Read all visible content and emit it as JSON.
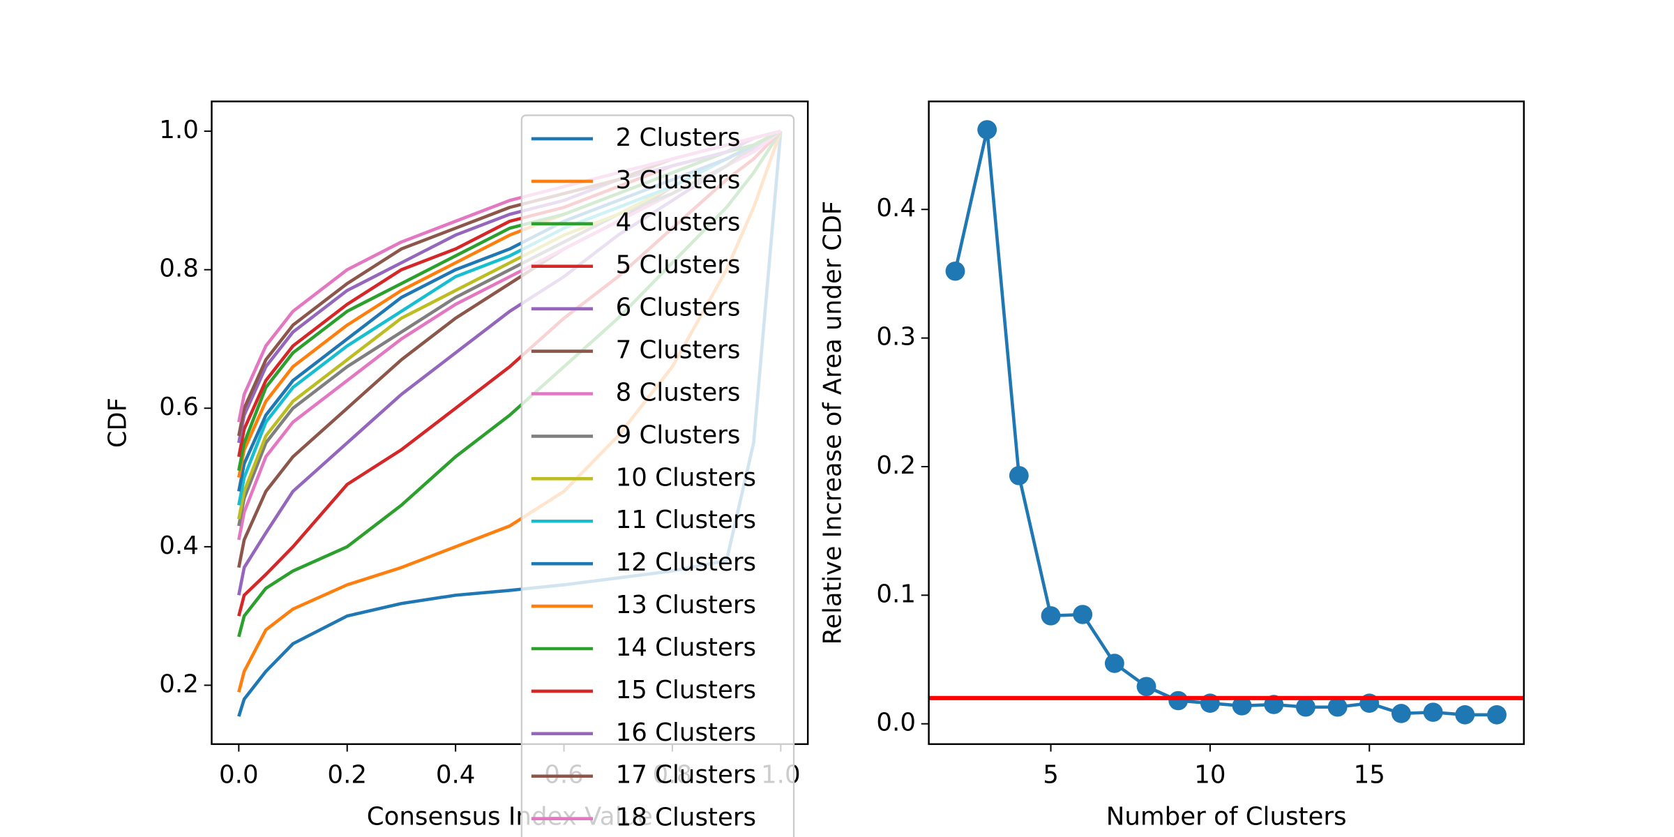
{
  "chart_data": [
    {
      "type": "line",
      "xlabel": "Consensus Index Value",
      "ylabel": "CDF",
      "x": [
        0,
        0.01,
        0.05,
        0.1,
        0.2,
        0.3,
        0.4,
        0.5,
        0.6,
        0.7,
        0.8,
        0.9,
        0.95,
        1.0
      ],
      "xlim": [
        -0.05,
        1.05
      ],
      "ylim": [
        0.115,
        1.043
      ],
      "xticks": [
        {
          "value": 0,
          "label": "0.0"
        },
        0.2,
        0.4,
        0.6,
        0.8,
        {
          "value": 1,
          "label": "1.0"
        }
      ],
      "yticks": [
        0.2,
        0.4,
        0.6,
        0.8,
        {
          "value": 1,
          "label": "1.0"
        }
      ],
      "legend": "upper right",
      "series": [
        {
          "name": "2 Clusters",
          "color": "#1f77b4",
          "values": [
            0.155,
            0.18,
            0.22,
            0.26,
            0.3,
            0.318,
            0.33,
            0.337,
            0.345,
            0.355,
            0.365,
            0.38,
            0.55,
            1.0
          ]
        },
        {
          "name": "3 Clusters",
          "color": "#ff7f0e",
          "values": [
            0.19,
            0.22,
            0.28,
            0.31,
            0.345,
            0.37,
            0.4,
            0.43,
            0.48,
            0.56,
            0.66,
            0.8,
            0.89,
            1.0
          ]
        },
        {
          "name": "4 Clusters",
          "color": "#2ca02c",
          "values": [
            0.27,
            0.3,
            0.34,
            0.365,
            0.4,
            0.46,
            0.53,
            0.59,
            0.66,
            0.73,
            0.81,
            0.89,
            0.94,
            1.0
          ]
        },
        {
          "name": "5 Clusters",
          "color": "#d62728",
          "values": [
            0.3,
            0.33,
            0.36,
            0.4,
            0.49,
            0.54,
            0.6,
            0.66,
            0.73,
            0.79,
            0.86,
            0.93,
            0.96,
            1.0
          ]
        },
        {
          "name": "6 Clusters",
          "color": "#9467bd",
          "values": [
            0.33,
            0.37,
            0.42,
            0.48,
            0.55,
            0.62,
            0.68,
            0.74,
            0.79,
            0.85,
            0.9,
            0.95,
            0.975,
            1.0
          ]
        },
        {
          "name": "7 Clusters",
          "color": "#8c564b",
          "values": [
            0.37,
            0.41,
            0.48,
            0.53,
            0.6,
            0.67,
            0.73,
            0.78,
            0.83,
            0.87,
            0.92,
            0.96,
            0.98,
            1.0
          ]
        },
        {
          "name": "8 Clusters",
          "color": "#e377c2",
          "values": [
            0.41,
            0.45,
            0.53,
            0.58,
            0.64,
            0.7,
            0.75,
            0.79,
            0.83,
            0.87,
            0.91,
            0.95,
            0.97,
            1.0
          ]
        },
        {
          "name": "9 Clusters",
          "color": "#7f7f7f",
          "values": [
            0.43,
            0.47,
            0.55,
            0.6,
            0.66,
            0.71,
            0.76,
            0.8,
            0.84,
            0.88,
            0.91,
            0.95,
            0.98,
            1.0
          ]
        },
        {
          "name": "10 Clusters",
          "color": "#bcbd22",
          "values": [
            0.44,
            0.48,
            0.56,
            0.61,
            0.67,
            0.73,
            0.77,
            0.81,
            0.85,
            0.88,
            0.92,
            0.96,
            0.98,
            1.0
          ]
        },
        {
          "name": "11 Clusters",
          "color": "#17becf",
          "values": [
            0.46,
            0.5,
            0.58,
            0.63,
            0.69,
            0.74,
            0.79,
            0.82,
            0.86,
            0.89,
            0.92,
            0.96,
            0.98,
            1.0
          ]
        },
        {
          "name": "12 Clusters",
          "color": "#1f77b4",
          "values": [
            0.48,
            0.52,
            0.59,
            0.64,
            0.7,
            0.76,
            0.8,
            0.83,
            0.87,
            0.9,
            0.93,
            0.96,
            0.98,
            1.0
          ]
        },
        {
          "name": "13 Clusters",
          "color": "#ff7f0e",
          "values": [
            0.5,
            0.54,
            0.61,
            0.66,
            0.72,
            0.77,
            0.81,
            0.85,
            0.88,
            0.91,
            0.94,
            0.97,
            0.98,
            1.0
          ]
        },
        {
          "name": "14 Clusters",
          "color": "#2ca02c",
          "values": [
            0.51,
            0.55,
            0.63,
            0.68,
            0.74,
            0.78,
            0.82,
            0.86,
            0.88,
            0.91,
            0.94,
            0.97,
            0.98,
            1.0
          ]
        },
        {
          "name": "15 Clusters",
          "color": "#d62728",
          "values": [
            0.53,
            0.57,
            0.64,
            0.69,
            0.75,
            0.8,
            0.83,
            0.87,
            0.89,
            0.92,
            0.95,
            0.97,
            0.99,
            1.0
          ]
        },
        {
          "name": "16 Clusters",
          "color": "#9467bd",
          "values": [
            0.55,
            0.59,
            0.66,
            0.71,
            0.77,
            0.81,
            0.85,
            0.88,
            0.9,
            0.93,
            0.95,
            0.97,
            0.99,
            1.0
          ]
        },
        {
          "name": "17 Clusters",
          "color": "#8c564b",
          "values": [
            0.56,
            0.6,
            0.67,
            0.72,
            0.78,
            0.83,
            0.86,
            0.89,
            0.91,
            0.93,
            0.96,
            0.98,
            0.99,
            1.0
          ]
        },
        {
          "name": "18 Clusters",
          "color": "#e377c2",
          "values": [
            0.58,
            0.62,
            0.69,
            0.74,
            0.8,
            0.84,
            0.87,
            0.9,
            0.92,
            0.94,
            0.96,
            0.98,
            0.99,
            1.0
          ]
        }
      ]
    },
    {
      "type": "line",
      "marker": true,
      "xlabel": "Number of Clusters",
      "ylabel": "Relative Increase of Area under CDF",
      "x": [
        2,
        3,
        4,
        5,
        6,
        7,
        8,
        9,
        10,
        11,
        12,
        13,
        14,
        15,
        16,
        17,
        18,
        19
      ],
      "xlim": [
        1.17,
        19.85
      ],
      "ylim": [
        -0.0158,
        0.484
      ],
      "xticks": [
        5,
        10,
        15
      ],
      "yticks": [
        {
          "value": 0,
          "label": "0.0"
        },
        0.1,
        0.2,
        0.3,
        0.4
      ],
      "series": [
        {
          "color": "#1f77b4",
          "values": [
            0.352,
            0.462,
            0.193,
            0.084,
            0.085,
            0.047,
            0.029,
            0.018,
            0.016,
            0.014,
            0.015,
            0.013,
            0.013,
            0.016,
            0.008,
            0.009,
            0.007,
            0.007
          ]
        }
      ],
      "hline": {
        "value": 0.02,
        "color": "#ff0000"
      }
    }
  ]
}
